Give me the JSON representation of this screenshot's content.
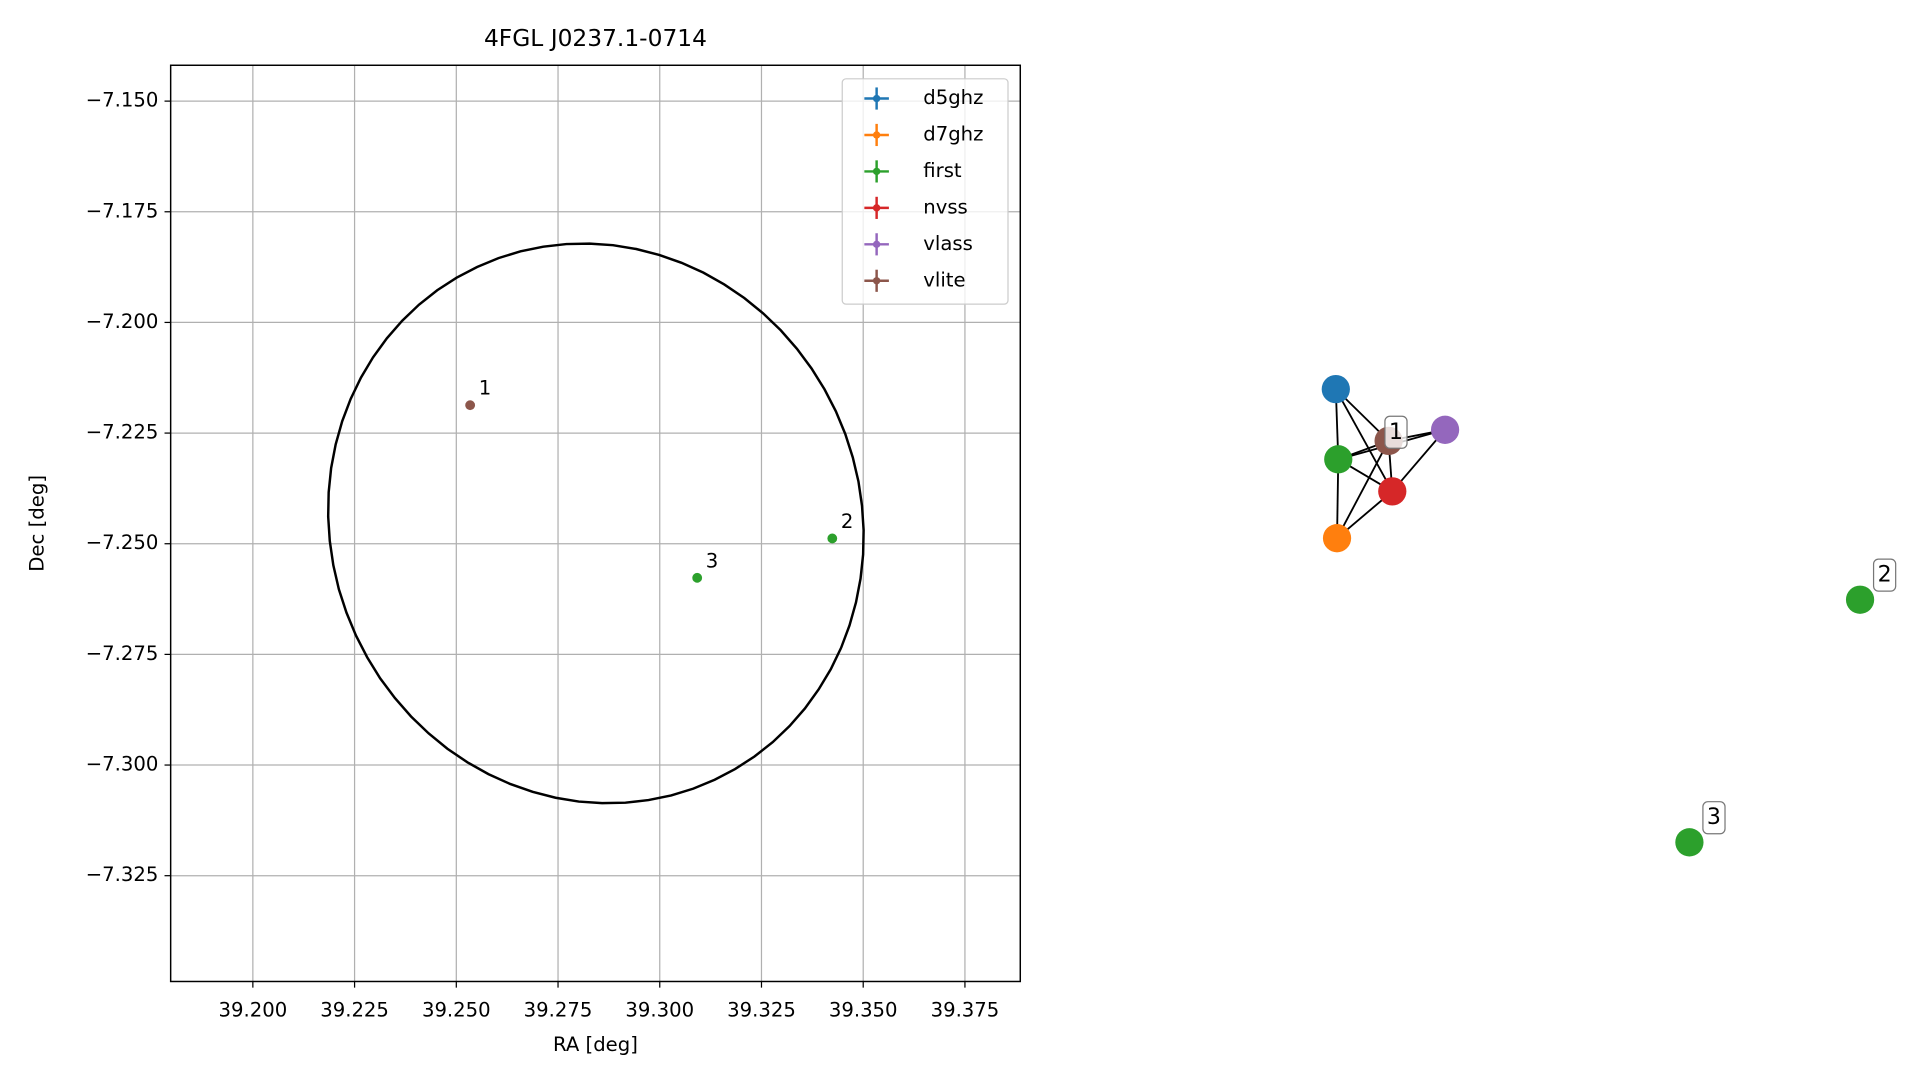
{
  "chart_data": [
    {
      "type": "scatter",
      "title": "4FGL J0237.1-0714",
      "x_label": "RA [deg]",
      "y_label": "Dec [deg]",
      "xlim": [
        39.1798,
        39.3886
      ],
      "ylim": [
        -7.3489,
        -7.1419
      ],
      "xticks": [
        {
          "value": 39.2,
          "label": "39.200"
        },
        39.225,
        {
          "value": 39.25,
          "label": "39.250"
        },
        39.275,
        {
          "value": 39.3,
          "label": "39.300"
        },
        39.325,
        {
          "value": 39.35,
          "label": "39.350"
        },
        39.375
      ],
      "yticks": [
        {
          "value": -7.15,
          "label": "−7.150"
        },
        {
          "value": -7.175,
          "label": "−7.175"
        },
        {
          "value": -7.2,
          "label": "−7.200"
        },
        {
          "value": -7.225,
          "label": "−7.225"
        },
        {
          "value": -7.25,
          "label": "−7.250"
        },
        {
          "value": -7.275,
          "label": "−7.275"
        },
        {
          "value": -7.3,
          "label": "−7.300"
        },
        {
          "value": -7.325,
          "label": "−7.325"
        }
      ],
      "grid": true,
      "legend": "upper right",
      "ellipse": {
        "ra": 39.2843,
        "dec": -7.2454,
        "a": 0.0665,
        "b": 0.0625,
        "angle": -25
      },
      "series": [
        {
          "name": "d5ghz",
          "color": "#1f77b4",
          "x": [],
          "values": [],
          "labels": []
        },
        {
          "name": "d7ghz",
          "color": "#ff7f0e",
          "x": [],
          "values": [],
          "labels": []
        },
        {
          "name": "first",
          "color": "#2ca02c",
          "x": [
            39.3424,
            39.3092
          ],
          "values": [
            -7.2488,
            -7.2577
          ],
          "labels": [
            "2",
            "3"
          ]
        },
        {
          "name": "nvss",
          "color": "#d62728",
          "x": [],
          "values": [],
          "labels": []
        },
        {
          "name": "vlass",
          "color": "#9467bd",
          "x": [],
          "values": [],
          "labels": []
        },
        {
          "name": "vlite",
          "color": "#8c564b",
          "x": [
            39.2534
          ],
          "values": [
            -7.2187
          ],
          "labels": [
            "1"
          ]
        }
      ]
    },
    {
      "type": "graph",
      "nodes": [
        {
          "color": "#1f77b4"
        },
        {
          "color": "#2ca02c"
        },
        {
          "color": "#8c564b",
          "label": "1"
        },
        {
          "color": "#9467bd"
        },
        {
          "color": "#d62728"
        },
        {
          "color": "#ff7f0e"
        },
        {
          "color": "#2ca02c",
          "label": "2"
        },
        {
          "color": "#2ca02c",
          "label": "3"
        }
      ],
      "edges": [
        [
          0,
          1
        ],
        [
          0,
          2
        ],
        [
          0,
          4
        ],
        [
          1,
          2
        ],
        [
          1,
          3
        ],
        [
          1,
          4
        ],
        [
          1,
          5
        ],
        [
          5,
          2
        ],
        [
          5,
          4
        ],
        [
          2,
          3
        ],
        [
          3,
          4
        ],
        [
          2,
          4
        ]
      ]
    }
  ]
}
